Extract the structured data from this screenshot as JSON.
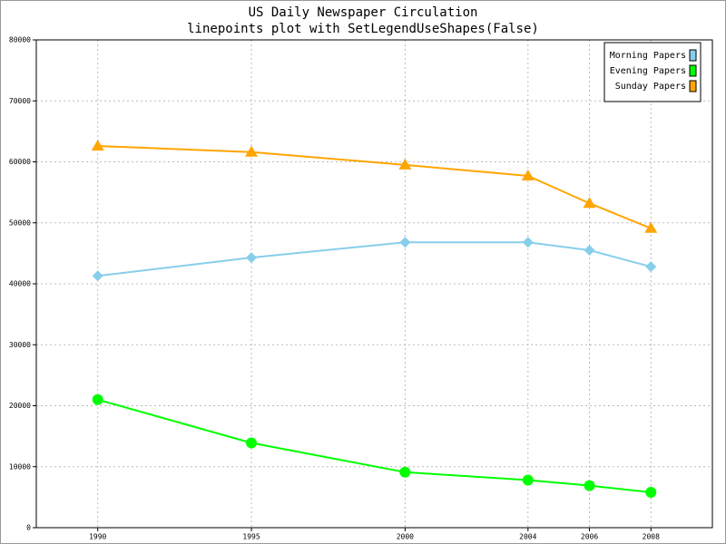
{
  "chart_data": {
    "type": "line",
    "title": "US Daily Newspaper Circulation",
    "subtitle": "linepoints plot with SetLegendUseShapes(False)",
    "x": [
      1990,
      1995,
      2000,
      2004,
      2006,
      2008
    ],
    "xlim": [
      1988,
      2010
    ],
    "xticks": [
      1990,
      1995,
      2000,
      2004,
      2006,
      2008
    ],
    "ylim": [
      0,
      80000
    ],
    "yticks": [
      0,
      10000,
      20000,
      30000,
      40000,
      50000,
      60000,
      70000,
      80000
    ],
    "grid": true,
    "legend": "top-right",
    "series": [
      {
        "name": "Morning Papers",
        "color": "#87ceeb",
        "marker": "diamond",
        "values": [
          41300,
          44300,
          46800,
          46800,
          45500,
          42800
        ]
      },
      {
        "name": "Evening Papers",
        "color": "#00ff00",
        "marker": "circle",
        "values": [
          21000,
          13900,
          9100,
          7800,
          6900,
          5800
        ]
      },
      {
        "name": "Sunday Papers",
        "color": "#ffa500",
        "marker": "triangle",
        "values": [
          62600,
          61600,
          59500,
          57700,
          53200,
          49100
        ]
      }
    ]
  }
}
